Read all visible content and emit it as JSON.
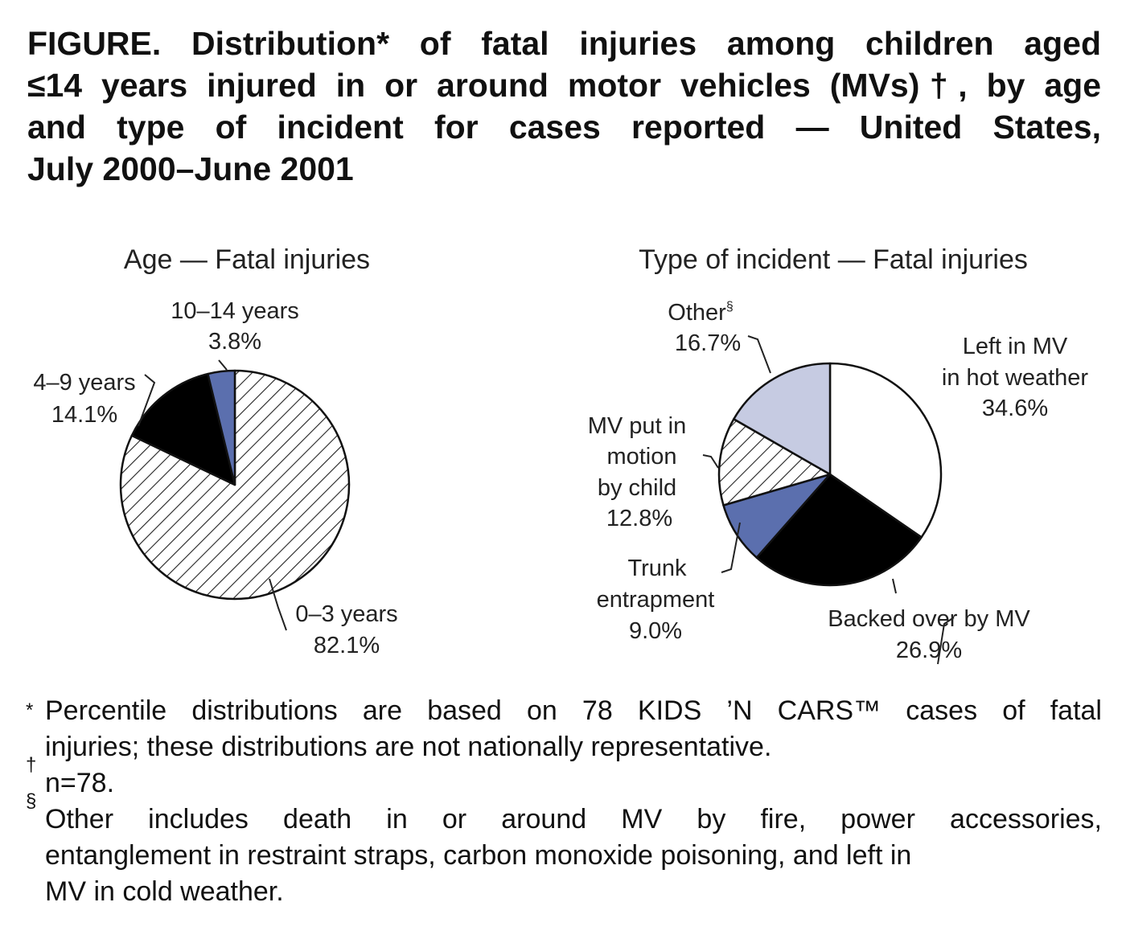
{
  "title": {
    "lines": [
      "FIGURE. Distribution* of fatal injuries among children aged",
      "≤14 years injured in or around motor vehicles (MVs)†, by age",
      "and type of incident for cases reported — United States,",
      "July 2000–June 2001"
    ]
  },
  "chart_data": [
    {
      "type": "pie",
      "title": "Age — Fatal injuries",
      "slices": [
        {
          "name": "0–3 years",
          "value": 82.1,
          "label": "82.1%",
          "fill": "hatch"
        },
        {
          "name": "4–9 years",
          "value": 14.1,
          "label": "14.1%",
          "fill": "#000000"
        },
        {
          "name": "10–14 years",
          "value": 3.8,
          "label": "3.8%",
          "fill": "#5b6fae"
        }
      ]
    },
    {
      "type": "pie",
      "title": "Type of incident — Fatal injuries",
      "slices": [
        {
          "name": "Left in MV in hot weather",
          "value": 34.6,
          "label": "34.6%",
          "fill": "#ffffff"
        },
        {
          "name": "Backed over by MV",
          "value": 26.9,
          "label": "26.9%",
          "fill": "#000000"
        },
        {
          "name": "Trunk entrapment",
          "value": 9.0,
          "label": "9.0%",
          "fill": "#5b6fae"
        },
        {
          "name": "MV put in motion by child",
          "value": 12.8,
          "label": "12.8%",
          "fill": "hatch"
        },
        {
          "name": "Other§",
          "value": 16.7,
          "label": "16.7%",
          "fill": "#c6cbe2"
        }
      ]
    }
  ],
  "labels": {
    "age": {
      "a1": "0–3 years",
      "a1v": "82.1%",
      "a2": "4–9 years",
      "a2v": "14.1%",
      "a3": "10–14 years",
      "a3v": "3.8%"
    },
    "type": {
      "t1a": "Left in MV",
      "t1b": "in hot weather",
      "t1v": "34.6%",
      "t2": "Backed over by MV",
      "t2v": "26.9%",
      "t3a": "Trunk",
      "t3b": "entrapment",
      "t3v": "9.0%",
      "t4a": "MV put in",
      "t4b": "motion",
      "t4c": "by child",
      "t4v": "12.8%",
      "t5": "Other",
      "t5mark": "§",
      "t5v": "16.7%"
    }
  },
  "footnotes": {
    "star_mark": "*",
    "star_line1": "Percentile distributions are based on 78 KIDS ’N CARS™ cases of fatal",
    "star_line2": "injuries; these distributions are not nationally representative.",
    "dagger_mark": "†",
    "dagger_text": "n=78.",
    "section_mark": "§",
    "section_line1": "Other includes death in or around MV by fire, power accessories,",
    "section_line2": "entanglement in restraint straps, carbon monoxide poisoning, and left in",
    "section_line3": "MV in cold weather."
  }
}
